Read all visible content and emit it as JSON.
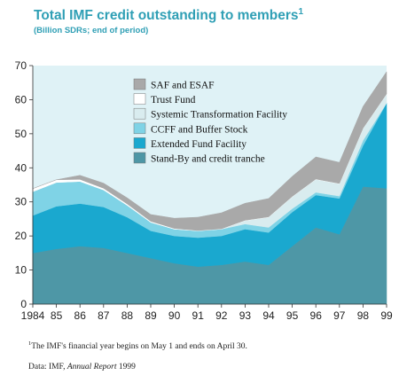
{
  "header": {
    "title": "Total IMF credit outstanding to members",
    "title_sup": "1",
    "subtitle": "(Billion SDRs; end of period)"
  },
  "footnote": {
    "marker": "1",
    "text": "The IMF's financial year begins on May 1 and ends on April 30."
  },
  "source": {
    "prefix": "Data:  IMF, ",
    "title": "Annual Report",
    "year": " 1999"
  },
  "colors": {
    "plot_background": "#dff2f6",
    "stand_by": "#4e97a6",
    "eff": "#1aa8cf",
    "ccff": "#7fd3e6",
    "stf": "#d9ecef",
    "trust_fund": "#ffffff",
    "saf_esaf": "#a9a9a9"
  },
  "chart_data": {
    "type": "area",
    "stacked": true,
    "x": [
      "1984",
      "85",
      "86",
      "87",
      "88",
      "89",
      "90",
      "91",
      "92",
      "93",
      "94",
      "95",
      "96",
      "97",
      "98",
      "99"
    ],
    "ylim": [
      0,
      70
    ],
    "yticks": [
      0,
      10,
      20,
      30,
      40,
      50,
      60,
      70
    ],
    "grid": false,
    "legend_position": "top-center",
    "series": [
      {
        "name": "Stand-By and credit tranche",
        "key": "stand_by",
        "values": [
          15,
          16.2,
          17,
          16.5,
          15,
          13.5,
          12,
          11,
          11.5,
          12.5,
          11.5,
          17,
          22.5,
          20.5,
          34.5,
          34
        ]
      },
      {
        "name": "Extended Fund Facility",
        "key": "eff",
        "values": [
          11,
          12.5,
          12.5,
          12,
          10.5,
          8,
          8,
          8.5,
          8.5,
          9.5,
          9.5,
          10,
          9.5,
          10.5,
          12,
          25
        ]
      },
      {
        "name": "CCFF and Buffer Stock",
        "key": "ccff",
        "values": [
          7,
          7,
          6.5,
          5,
          3.5,
          2.5,
          2,
          2,
          2,
          1.5,
          1.5,
          1,
          0.8,
          0.7,
          1.5,
          0
        ]
      },
      {
        "name": "Systemic Transformation Facility",
        "key": "stf",
        "values": [
          0,
          0,
          0,
          0,
          0,
          0,
          0,
          0,
          0,
          1,
          3,
          3.5,
          3.8,
          3.6,
          3.5,
          2.6
        ]
      },
      {
        "name": "Trust Fund",
        "key": "trust_fund",
        "values": [
          0.9,
          0.8,
          0.6,
          0.5,
          0.4,
          0.3,
          0.2,
          0.1,
          0.1,
          0.1,
          0.1,
          0.1,
          0.1,
          0.1,
          0.1,
          0.1
        ]
      },
      {
        "name": "SAF and ESAF",
        "key": "saf_esaf",
        "values": [
          0,
          0,
          1.2,
          1.5,
          1.8,
          2,
          3,
          3.9,
          4.7,
          5,
          5.4,
          5.9,
          6.5,
          6.2,
          6.4,
          6.5
        ]
      }
    ]
  }
}
